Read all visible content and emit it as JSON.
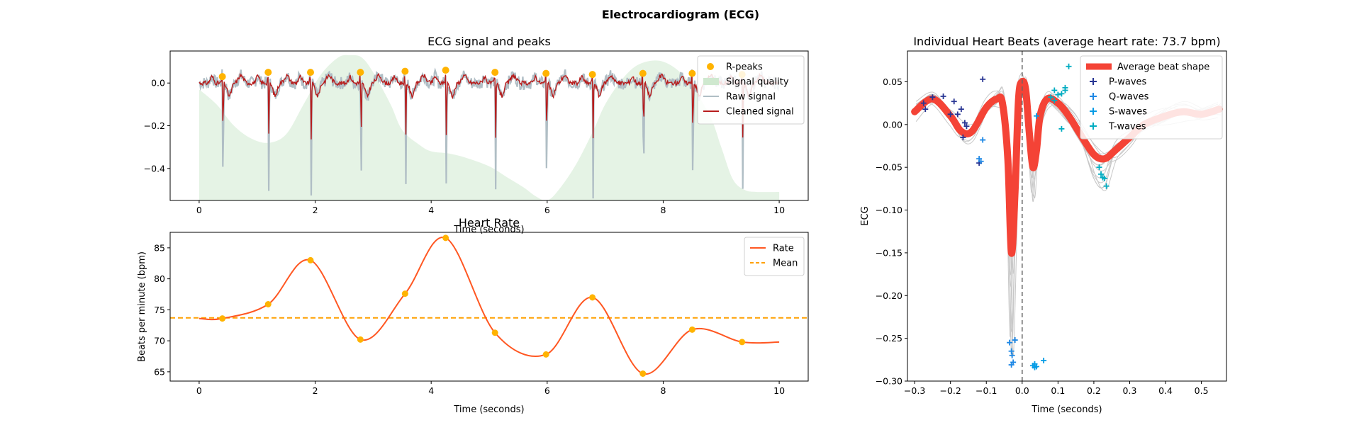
{
  "figure": {
    "suptitle": "Electrocardiogram (ECG)"
  },
  "chart_data": [
    {
      "id": "ecg",
      "type": "line",
      "title": "ECG signal and peaks",
      "xlabel": "Time (seconds)",
      "ylabel": "",
      "xlim": [
        -0.5,
        10.5
      ],
      "ylim": [
        -0.55,
        0.15
      ],
      "xticks": [
        0,
        2,
        4,
        6,
        8,
        10
      ],
      "yticks": [
        0.0,
        -0.2,
        -0.4
      ],
      "legend_position": "top-right",
      "legend": [
        "R-peaks",
        "Signal quality",
        "Raw signal",
        "Cleaned signal"
      ],
      "colors": {
        "rpeaks": "#ffb300",
        "quality": "#dcefdc",
        "raw": "#b0bec5",
        "clean": "#b71c1c"
      },
      "r_peaks": {
        "x": [
          0.4,
          1.19,
          1.92,
          2.78,
          3.55,
          4.25,
          5.1,
          5.98,
          6.78,
          7.65,
          8.5,
          9.36
        ],
        "y": [
          0.03,
          0.05,
          0.05,
          0.05,
          0.055,
          0.06,
          0.05,
          0.045,
          0.04,
          0.045,
          0.045,
          0.04
        ]
      },
      "signal_quality": {
        "x": [
          0,
          0.3,
          0.6,
          0.9,
          1.2,
          1.5,
          1.8,
          2.1,
          2.4,
          2.6,
          2.8,
          3.0,
          3.3,
          3.5,
          3.8,
          4.0,
          4.3,
          4.6,
          5.0,
          5.3,
          5.6,
          5.8,
          6.0,
          6.2,
          6.5,
          6.8,
          7.0,
          7.3,
          7.6,
          8.0,
          8.4,
          8.8,
          9.0,
          9.2,
          9.4,
          9.6,
          10.0
        ],
        "y": [
          -0.03,
          -0.1,
          -0.2,
          -0.26,
          -0.28,
          -0.24,
          -0.1,
          0.04,
          0.12,
          0.13,
          0.12,
          0.05,
          -0.1,
          -0.22,
          -0.29,
          -0.32,
          -0.33,
          -0.35,
          -0.39,
          -0.44,
          -0.49,
          -0.53,
          -0.55,
          -0.5,
          -0.38,
          -0.22,
          -0.1,
          0.02,
          0.09,
          0.1,
          0.02,
          -0.15,
          -0.3,
          -0.45,
          -0.5,
          -0.51,
          -0.51
        ]
      },
      "raw_signal": {
        "style": "ecg trace with R-peak spikes at r_peaks.x",
        "baseline": 0.0,
        "spike_min": -0.54
      },
      "cleaned_signal": {
        "style": "filtered ecg trace",
        "baseline": 0.0,
        "spike_min": -0.28
      }
    },
    {
      "id": "rate",
      "type": "line",
      "title": "Heart Rate",
      "xlabel": "Time (seconds)",
      "ylabel": "Beats per minute (bpm)",
      "xlim": [
        -0.5,
        10.5
      ],
      "ylim": [
        63.5,
        87.5
      ],
      "xticks": [
        0,
        2,
        4,
        6,
        8,
        10
      ],
      "yticks": [
        65,
        70,
        75,
        80,
        85
      ],
      "legend_position": "top-right",
      "legend": [
        "Rate",
        "Mean"
      ],
      "colors": {
        "rate": "#ff5722",
        "mean": "#ffa000",
        "points": "#ffb300"
      },
      "mean": 73.7,
      "points": {
        "x": [
          0.4,
          1.19,
          1.92,
          2.78,
          3.55,
          4.25,
          5.1,
          5.98,
          6.78,
          7.65,
          8.5,
          9.36
        ],
        "y": [
          73.6,
          75.9,
          83.0,
          70.2,
          77.6,
          86.6,
          71.3,
          67.8,
          77.0,
          64.7,
          71.8,
          69.8
        ]
      },
      "rate_end": {
        "x": [
          0,
          10
        ],
        "y": [
          73.6,
          69.8
        ]
      }
    },
    {
      "id": "beats",
      "type": "line",
      "title": "Individual Heart Beats (average heart rate: 73.7 bpm)",
      "xlabel": "Time (seconds)",
      "ylabel": "ECG",
      "xlim": [
        -0.32,
        0.57
      ],
      "ylim": [
        -0.3,
        0.086
      ],
      "xticks": [
        -0.3,
        -0.2,
        -0.1,
        0.0,
        0.1,
        0.2,
        0.3,
        0.4,
        0.5
      ],
      "yticks": [
        0.05,
        0.0,
        -0.05,
        -0.1,
        -0.15,
        -0.2,
        -0.25,
        -0.3
      ],
      "legend_position": "top-right",
      "legend": [
        "Average beat shape",
        "P-waves",
        "Q-waves",
        "S-waves",
        "T-waves"
      ],
      "colors": {
        "avg": "#f44336",
        "p": "#283593",
        "q": "#1e88e5",
        "s": "#039be5",
        "t": "#00acc1",
        "beats": "#c8c8c8"
      },
      "average_beat": {
        "x": [
          -0.3,
          -0.25,
          -0.2,
          -0.17,
          -0.14,
          -0.1,
          -0.07,
          -0.055,
          -0.04,
          -0.03,
          -0.02,
          -0.01,
          0.0,
          0.01,
          0.02,
          0.03,
          0.04,
          0.05,
          0.07,
          0.1,
          0.13,
          0.16,
          0.2,
          0.23,
          0.26,
          0.3,
          0.34,
          0.4,
          0.45,
          0.5,
          0.55
        ],
        "y": [
          0.015,
          0.03,
          0.01,
          -0.008,
          -0.008,
          0.02,
          0.03,
          0.025,
          -0.04,
          -0.15,
          -0.08,
          0.03,
          0.05,
          0.04,
          -0.01,
          -0.05,
          -0.03,
          0.01,
          0.03,
          0.025,
          0.01,
          -0.01,
          -0.035,
          -0.04,
          -0.03,
          -0.015,
          0.0,
          0.01,
          0.015,
          0.012,
          0.018
        ]
      },
      "p_waves": {
        "x": [
          -0.275,
          -0.27,
          -0.25,
          -0.22,
          -0.2,
          -0.19,
          -0.18,
          -0.17,
          -0.165,
          -0.16,
          -0.12,
          -0.11,
          -0.155
        ],
        "y": [
          0.025,
          0.018,
          0.032,
          0.033,
          0.012,
          0.027,
          0.012,
          0.018,
          -0.015,
          0.002,
          -0.045,
          0.053,
          -0.002
        ]
      },
      "q_waves": {
        "x": [
          -0.12,
          -0.115,
          -0.11,
          -0.035,
          -0.03,
          -0.028,
          -0.025,
          -0.03,
          -0.02
        ],
        "y": [
          -0.04,
          -0.043,
          -0.018,
          -0.255,
          -0.265,
          -0.27,
          -0.278,
          -0.281,
          -0.252
        ]
      },
      "s_waves": {
        "x": [
          0.035,
          0.04,
          0.06,
          0.04,
          0.035,
          0.03
        ],
        "y": [
          -0.28,
          -0.283,
          -0.276,
          0.01,
          -0.284,
          -0.282
        ]
      },
      "t_waves": {
        "x": [
          0.09,
          0.1,
          0.11,
          0.12,
          0.13,
          0.09,
          0.08,
          0.215,
          0.22,
          0.225,
          0.23,
          0.235,
          0.11,
          0.12
        ],
        "y": [
          0.04,
          0.035,
          0.036,
          0.04,
          0.068,
          0.028,
          0.032,
          -0.05,
          -0.058,
          -0.062,
          -0.063,
          -0.072,
          -0.005,
          0.043
        ]
      }
    }
  ]
}
